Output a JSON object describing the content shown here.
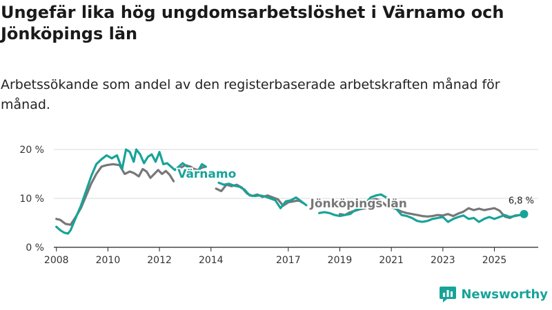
{
  "title": "Ungefär lika hög ungdomsarbetslöshet i Värnamo och Jönköpings län",
  "subtitle": "Arbetssökande som andel av den registerbaserade arbetskraften månad för månad.",
  "brand": {
    "name": "Newsworthy"
  },
  "colors": {
    "varnamo": "#17a399",
    "jonkoping": "#777777",
    "grid": "#d9d9d9",
    "axis": "#222222"
  },
  "chart_data": {
    "type": "line",
    "title": "Ungefär lika hög ungdomsarbetslöshet i Värnamo och Jönköpings län",
    "xlabel": "",
    "ylabel": "",
    "xlim": [
      2007.9,
      2026.7
    ],
    "ylim": [
      0,
      20
    ],
    "x_ticks": [
      2008,
      2010,
      2012,
      2014,
      2017,
      2019,
      2021,
      2023,
      2025
    ],
    "x_tick_labels": [
      "2008",
      "2010",
      "2012",
      "2014",
      "2017",
      "2019",
      "2021",
      "2023",
      "2025"
    ],
    "y_ticks": [
      0,
      10,
      20
    ],
    "y_tick_labels": [
      "0 %",
      "10 %",
      "20 %"
    ],
    "end_label": "6,8 %",
    "series": [
      {
        "name": "Jönköpings län",
        "label": "Jönköpings län",
        "color": "#777777",
        "x": [
          2008.0,
          2008.15,
          2008.35,
          2008.55,
          2008.75,
          2008.95,
          2009.15,
          2009.35,
          2009.55,
          2009.75,
          2009.95,
          2010.2,
          2010.45,
          2010.65,
          2010.85,
          2011.0,
          2011.2,
          2011.35,
          2011.5,
          2011.65,
          2011.8,
          2011.95,
          2012.1,
          2012.25,
          2012.4,
          2012.55,
          null,
          2012.8,
          2013.0,
          2013.2,
          2013.35,
          2013.5,
          2013.65,
          2013.8,
          null,
          2014.2,
          2014.4,
          2014.6,
          2014.8,
          2015.0,
          2015.2,
          2015.4,
          2015.6,
          2015.8,
          2016.0,
          2016.2,
          2016.4,
          2016.6,
          2016.8,
          2017.0,
          2017.2,
          2017.4,
          2017.6,
          null,
          2019.0,
          2019.2,
          2019.4,
          2019.6,
          2019.8,
          2020.0,
          2020.2,
          2020.4,
          2020.6,
          2020.8,
          2021.0,
          2021.2,
          2021.4,
          2021.6,
          2021.8,
          2022.0,
          2022.2,
          2022.4,
          2022.6,
          2022.8,
          2023.0,
          2023.2,
          2023.4,
          2023.6,
          2023.8,
          2024.0,
          2024.2,
          2024.4,
          2024.6,
          2024.8,
          2025.0,
          2025.2,
          2025.4,
          2025.6,
          2025.8,
          2026.0,
          2026.2
        ],
        "values": [
          5.8,
          5.6,
          4.8,
          4.6,
          6.2,
          8.0,
          10.5,
          13.0,
          15.0,
          16.5,
          16.8,
          17.0,
          16.8,
          15.0,
          15.5,
          15.2,
          14.5,
          16.0,
          15.5,
          14.2,
          15.0,
          15.8,
          15.0,
          15.6,
          14.8,
          13.5,
          null,
          16.2,
          16.8,
          16.5,
          16.0,
          15.8,
          16.3,
          16.5,
          null,
          12.0,
          11.5,
          12.8,
          12.5,
          12.8,
          12.2,
          11.0,
          10.5,
          10.8,
          10.3,
          10.6,
          10.2,
          9.8,
          8.5,
          9.2,
          9.4,
          9.6,
          9.0,
          null,
          6.8,
          6.6,
          7.2,
          7.5,
          7.8,
          8.0,
          9.6,
          9.9,
          9.5,
          8.5,
          8.2,
          7.8,
          7.3,
          7.0,
          6.8,
          6.6,
          6.4,
          6.3,
          6.4,
          6.6,
          6.5,
          6.8,
          6.4,
          6.9,
          7.3,
          8.0,
          7.6,
          7.9,
          7.6,
          7.8,
          8.0,
          7.5,
          6.3,
          6.0,
          6.5,
          6.6,
          6.8
        ]
      },
      {
        "name": "Värnamo",
        "label": "Värnamo",
        "color": "#17a399",
        "x": [
          2008.0,
          2008.15,
          2008.3,
          2008.45,
          2008.55,
          2008.75,
          2008.95,
          2009.15,
          2009.35,
          2009.55,
          2009.75,
          2009.95,
          2010.15,
          2010.35,
          2010.55,
          2010.7,
          2010.85,
          2011.0,
          2011.1,
          2011.25,
          2011.4,
          2011.55,
          2011.7,
          2011.85,
          2012.0,
          2012.15,
          2012.3,
          2012.45,
          2012.6,
          2012.75,
          2012.9,
          2013.05,
          2013.2,
          2013.35,
          2013.5,
          2013.65,
          2013.8,
          null,
          2014.3,
          2014.5,
          2014.7,
          2014.9,
          2015.1,
          2015.3,
          2015.5,
          2015.7,
          2015.9,
          2016.1,
          2016.3,
          2016.5,
          2016.7,
          2016.9,
          2017.1,
          2017.3,
          2017.5,
          2017.7,
          null,
          2018.2,
          2018.4,
          2018.6,
          2018.8,
          2019.0,
          2019.2,
          2019.4,
          2019.6,
          2019.8,
          2020.0,
          2020.2,
          2020.4,
          2020.6,
          2020.8,
          2021.0,
          2021.2,
          2021.4,
          2021.6,
          2021.8,
          2022.0,
          2022.2,
          2022.4,
          2022.6,
          2022.8,
          2023.0,
          2023.2,
          2023.4,
          2023.6,
          2023.8,
          2024.0,
          2024.2,
          2024.4,
          2024.6,
          2024.8,
          2025.0,
          2025.2,
          2025.4,
          2025.6,
          2025.8,
          2026.0,
          2026.15
        ],
        "values": [
          4.2,
          3.5,
          3.0,
          2.8,
          3.5,
          6.0,
          8.5,
          11.5,
          14.5,
          17.0,
          18.0,
          18.8,
          18.2,
          18.8,
          16.0,
          20.0,
          19.5,
          17.5,
          20.0,
          19.0,
          17.2,
          18.5,
          19.0,
          17.5,
          19.5,
          17.0,
          17.2,
          16.5,
          15.8,
          16.5,
          17.2,
          16.6,
          16.0,
          15.2,
          15.6,
          17.0,
          16.5,
          null,
          13.2,
          12.8,
          13.0,
          12.6,
          12.4,
          11.8,
          10.6,
          10.5,
          10.6,
          10.4,
          10.0,
          9.6,
          8.0,
          9.4,
          9.6,
          10.2,
          9.4,
          8.6,
          null,
          7.0,
          7.2,
          7.0,
          6.6,
          6.4,
          6.6,
          6.8,
          7.6,
          7.8,
          9.0,
          10.2,
          10.6,
          10.8,
          10.2,
          9.0,
          7.8,
          6.6,
          6.4,
          6.0,
          5.4,
          5.2,
          5.4,
          5.8,
          6.0,
          6.2,
          5.2,
          5.8,
          6.2,
          6.5,
          5.8,
          6.0,
          5.2,
          5.8,
          6.2,
          5.8,
          6.2,
          6.6,
          6.2,
          6.4,
          6.6,
          6.8
        ]
      }
    ]
  }
}
